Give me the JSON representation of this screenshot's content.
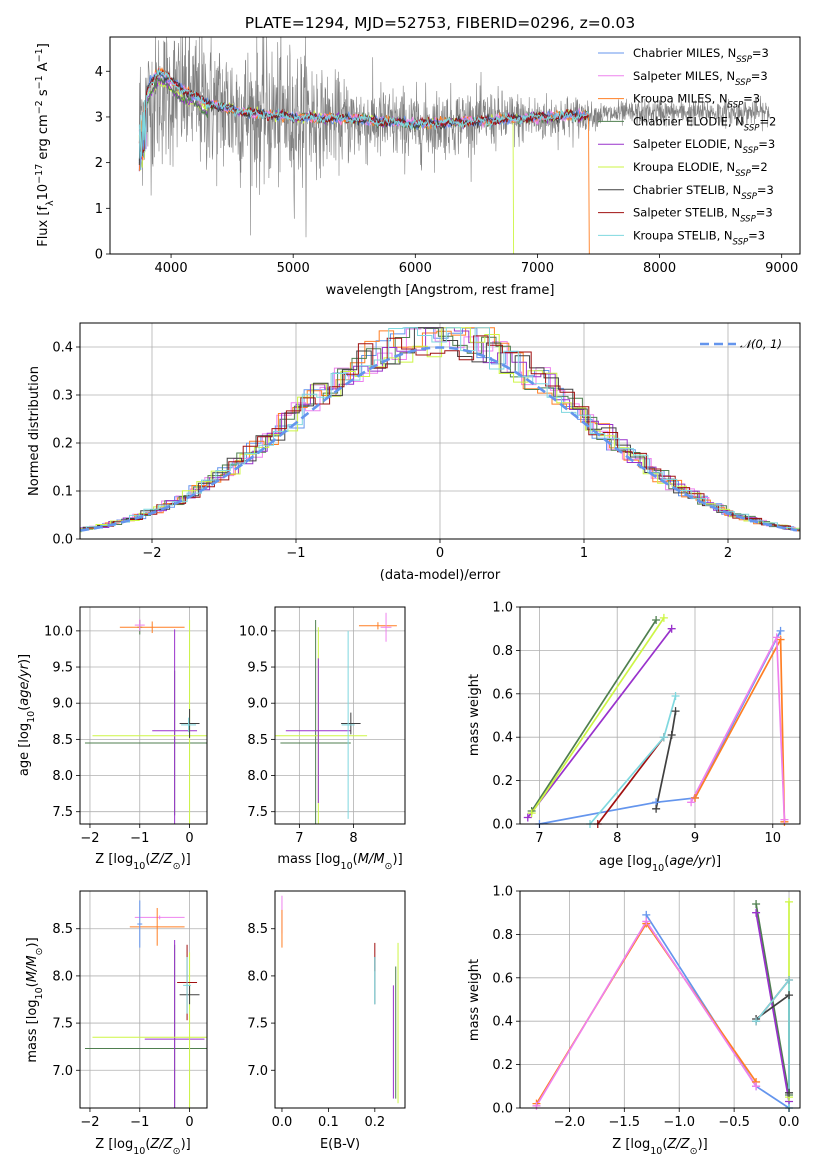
{
  "figure_title": "PLATE=1294, MJD=52753, FIBERID=0296, z=0.03",
  "series_colors": {
    "Chabrier MILES": "#6495ed",
    "Salpeter MILES": "#ee82ee",
    "Kroupa MILES": "#ff7f24",
    "Chabrier ELODIE": "#4f7f4f",
    "Salpeter ELODIE": "#9932cc",
    "Kroupa ELODIE": "#cdf545",
    "Chabrier STELIB": "#404040",
    "Salpeter STELIB": "#a01010",
    "Kroupa STELIB": "#7fd8df",
    "data": "#808080"
  },
  "chart_data": [
    {
      "id": "spectrum",
      "type": "line",
      "title": "PLATE=1294, MJD=52753, FIBERID=0296, z=0.03",
      "xlabel": "wavelength [Angstrom, rest frame]",
      "ylabel": "Flux [f_λ 10^-17 erg cm^-2 s^-1 A^-1]",
      "xlim": [
        3500,
        9150
      ],
      "ylim": [
        0,
        4.75
      ],
      "xticks": [
        4000,
        5000,
        6000,
        7000,
        8000,
        9000
      ],
      "yticks": [
        0,
        1,
        2,
        3,
        4
      ],
      "grid": false,
      "legend_position": "top-right",
      "legend": [
        {
          "label": "Chabrier MILES, N",
          "sub": "SSP",
          "eq": "=3",
          "color": "#6495ed"
        },
        {
          "label": "Salpeter MILES, N",
          "sub": "SSP",
          "eq": "=3",
          "color": "#ee82ee"
        },
        {
          "label": "Kroupa MILES, N",
          "sub": "SSP",
          "eq": "=3",
          "color": "#ff7f24"
        },
        {
          "label": "Chabrier ELODIE, N",
          "sub": "SSP",
          "eq": "=2",
          "color": "#4f7f4f"
        },
        {
          "label": "Salpeter ELODIE, N",
          "sub": "SSP",
          "eq": "=3",
          "color": "#9932cc"
        },
        {
          "label": "Kroupa ELODIE, N",
          "sub": "SSP",
          "eq": "=2",
          "color": "#cdf545"
        },
        {
          "label": "Chabrier STELIB, N",
          "sub": "SSP",
          "eq": "=3",
          "color": "#404040"
        },
        {
          "label": "Salpeter STELIB, N",
          "sub": "SSP",
          "eq": "=3",
          "color": "#a01010"
        },
        {
          "label": "Kroupa STELIB, N",
          "sub": "SSP",
          "eq": "=3",
          "color": "#7fd8df"
        }
      ],
      "data_spectrum": {
        "x_range": [
          3740,
          8900
        ],
        "continuum": [
          [
            3740,
            3.0
          ],
          [
            3900,
            3.5
          ],
          [
            4100,
            3.5
          ],
          [
            4300,
            3.3
          ],
          [
            4600,
            3.1
          ],
          [
            5000,
            3.0
          ],
          [
            5500,
            2.9
          ],
          [
            6000,
            2.8
          ],
          [
            6500,
            2.95
          ],
          [
            7000,
            2.95
          ],
          [
            7500,
            3.05
          ],
          [
            8000,
            3.1
          ],
          [
            8500,
            3.1
          ],
          [
            8900,
            3.1
          ]
        ],
        "noise_sigma_blue": 1.4,
        "noise_sigma_red": 0.25
      },
      "model_spectra": {
        "x_range": [
          3740,
          7420
        ],
        "continuum": [
          [
            3740,
            2.9
          ],
          [
            3820,
            3.7
          ],
          [
            3900,
            4.0
          ],
          [
            4100,
            3.6
          ],
          [
            4300,
            3.3
          ],
          [
            4600,
            3.1
          ],
          [
            5000,
            3.0
          ],
          [
            5500,
            2.95
          ],
          [
            6000,
            2.85
          ],
          [
            6500,
            2.9
          ],
          [
            7000,
            3.0
          ],
          [
            7420,
            3.05
          ]
        ]
      }
    },
    {
      "id": "residuals",
      "type": "histogram",
      "xlabel": "(data-model)/error",
      "ylabel": "Normed distribution",
      "xlim": [
        -2.5,
        2.5
      ],
      "ylim": [
        0,
        0.45
      ],
      "xticks": [
        -2,
        -1,
        0,
        1,
        2
      ],
      "yticks": [
        0.0,
        0.1,
        0.2,
        0.3,
        0.4
      ],
      "grid": true,
      "legend_position": "top-right",
      "legend": [
        {
          "label": "𝒩(0, 1)",
          "color": "#6495ed",
          "dashed": true
        }
      ],
      "reference_curve": "normal(0,1)"
    },
    {
      "id": "age_vs_Z",
      "type": "errorbar",
      "xlabel": "Z [log10(Z/Z⊙)]",
      "ylabel": "age  [log10(age/yr)]",
      "xlim": [
        -2.2,
        0.35
      ],
      "ylim": [
        7.33,
        10.33
      ],
      "xticks": [
        -2,
        -1,
        0
      ],
      "yticks": [
        7.5,
        8.0,
        8.5,
        9.0,
        9.5,
        10.0
      ],
      "grid": true,
      "points": [
        {
          "series": "Chabrier ELODIE",
          "x": -1.0,
          "y": 10.05,
          "xerr": 0.05,
          "yerr": 0.1
        },
        {
          "series": "Kroupa MILES",
          "x": -0.75,
          "y": 10.05,
          "xerr": 0.65,
          "yerr": 0.08
        },
        {
          "series": "Salpeter MILES",
          "x": -1.0,
          "y": 10.08,
          "xerr": 0.1,
          "yerr": 0.08
        },
        {
          "series": "Chabrier ELODIE",
          "x": -0.3,
          "y": 8.45,
          "xerr": 1.8,
          "yerr": 1.0
        },
        {
          "series": "Salpeter ELODIE",
          "x": -0.3,
          "y": 8.62,
          "xerr": 0.45,
          "yerr": 1.4
        },
        {
          "series": "Kroupa ELODIE",
          "x": 0.0,
          "y": 8.55,
          "xerr": 1.95,
          "yerr": 1.6
        },
        {
          "series": "Chabrier STELIB",
          "x": 0.0,
          "y": 8.72,
          "xerr": 0.2,
          "yerr": 0.2
        },
        {
          "series": "Kroupa STELIB",
          "x": -0.02,
          "y": 8.7,
          "xerr": 0.15,
          "yerr": 0.1
        }
      ]
    },
    {
      "id": "age_vs_mass",
      "type": "errorbar",
      "xlabel": "mass [log10(M/M⊙)]",
      "ylabel": "",
      "xlim": [
        6.55,
        8.95
      ],
      "ylim": [
        7.33,
        10.33
      ],
      "xticks": [
        7,
        8
      ],
      "yticks": [
        7.5,
        8.0,
        8.5,
        9.0,
        9.5,
        10.0
      ],
      "grid": true,
      "points": [
        {
          "series": "Kroupa MILES",
          "x": 8.45,
          "y": 10.07,
          "xerr": 0.35,
          "yerr": 0.05
        },
        {
          "series": "Salpeter MILES",
          "x": 8.6,
          "y": 10.05,
          "xerr": 0.1,
          "yerr": 0.2
        },
        {
          "series": "Chabrier ELODIE",
          "x": 7.3,
          "y": 8.45,
          "xerr": 0.65,
          "yerr": 1.7
        },
        {
          "series": "Kroupa ELODIE",
          "x": 7.35,
          "y": 8.55,
          "xerr": 0.9,
          "yerr": 1.5
        },
        {
          "series": "Salpeter ELODIE",
          "x": 7.35,
          "y": 8.62,
          "xerr": 0.6,
          "yerr": 1.0
        },
        {
          "series": "Chabrier STELIB",
          "x": 7.95,
          "y": 8.72,
          "xerr": 0.18,
          "yerr": 0.15
        },
        {
          "series": "Kroupa STELIB",
          "x": 7.9,
          "y": 8.7,
          "xerr": 0.12,
          "yerr": 1.3
        }
      ]
    },
    {
      "id": "massweight_vs_age",
      "type": "line",
      "xlabel": "age  [log10(age/yr)]",
      "ylabel": "mass weight",
      "xlim": [
        6.75,
        10.35
      ],
      "ylim": [
        0,
        1.0
      ],
      "xticks": [
        7,
        8,
        9,
        10
      ],
      "yticks": [
        0.0,
        0.2,
        0.4,
        0.6,
        0.8,
        1.0
      ],
      "grid": true,
      "series": [
        {
          "name": "Chabrier MILES",
          "x": [
            7.0,
            8.5,
            9.0,
            10.1
          ],
          "y": [
            0.0,
            0.1,
            0.12,
            0.89
          ]
        },
        {
          "name": "Kroupa MILES",
          "x": [
            9.0,
            10.1,
            10.15
          ],
          "y": [
            0.12,
            0.85,
            0.01
          ]
        },
        {
          "name": "Salpeter MILES",
          "x": [
            8.95,
            10.05,
            10.15
          ],
          "y": [
            0.1,
            0.86,
            0.02
          ]
        },
        {
          "name": "Chabrier ELODIE",
          "x": [
            6.9,
            8.5
          ],
          "y": [
            0.06,
            0.94
          ]
        },
        {
          "name": "Salpeter ELODIE",
          "x": [
            6.85,
            8.7
          ],
          "y": [
            0.03,
            0.9
          ]
        },
        {
          "name": "Kroupa ELODIE",
          "x": [
            6.9,
            8.6
          ],
          "y": [
            0.05,
            0.95
          ]
        },
        {
          "name": "Chabrier STELIB",
          "x": [
            8.5,
            8.7,
            8.75
          ],
          "y": [
            0.07,
            0.41,
            0.52
          ]
        },
        {
          "name": "Salpeter STELIB",
          "x": [
            7.75,
            8.6
          ],
          "y": [
            0.0,
            0.4
          ]
        },
        {
          "name": "Kroupa STELIB",
          "x": [
            7.65,
            8.6,
            8.75
          ],
          "y": [
            0.0,
            0.4,
            0.59
          ]
        }
      ]
    },
    {
      "id": "mass_vs_Z",
      "type": "errorbar",
      "xlabel": "Z [log10(Z/Z⊙)]",
      "ylabel": "mass [log10(M/M⊙)]",
      "xlim": [
        -2.2,
        0.35
      ],
      "ylim": [
        6.6,
        8.9
      ],
      "xticks": [
        -2,
        -1,
        0
      ],
      "yticks": [
        7.0,
        7.5,
        8.0,
        8.5
      ],
      "grid": true,
      "points": [
        {
          "series": "Salpeter MILES",
          "x": -0.6,
          "y": 8.62,
          "xerr": 0.5,
          "yerr": 0.02
        },
        {
          "series": "Kroupa MILES",
          "x": -0.65,
          "y": 8.52,
          "xerr": 0.55,
          "yerr": 0.2
        },
        {
          "series": "Chabrier MILES",
          "x": -1.0,
          "y": 8.55,
          "xerr": 0.05,
          "yerr": 0.25
        },
        {
          "series": "Chabrier ELODIE",
          "x": -0.3,
          "y": 7.23,
          "xerr": 1.8,
          "yerr": 1.1
        },
        {
          "series": "Salpeter ELODIE",
          "x": -0.3,
          "y": 7.33,
          "xerr": 0.6,
          "yerr": 1.05
        },
        {
          "series": "Kroupa ELODIE",
          "x": 0.0,
          "y": 7.35,
          "xerr": 1.95,
          "yerr": 0.9
        },
        {
          "series": "Salpeter STELIB",
          "x": -0.05,
          "y": 7.93,
          "xerr": 0.2,
          "yerr": 0.4
        },
        {
          "series": "Chabrier STELIB",
          "x": 0.0,
          "y": 7.8,
          "xerr": 0.2,
          "yerr": 0.1
        },
        {
          "series": "Kroupa STELIB",
          "x": -0.05,
          "y": 7.9,
          "xerr": 0.08,
          "yerr": 0.3
        }
      ]
    },
    {
      "id": "mass_vs_ebv",
      "type": "errorbar",
      "xlabel": "E(B-V)",
      "ylabel": "",
      "xlim": [
        -0.015,
        0.265
      ],
      "ylim": [
        6.6,
        8.9
      ],
      "xticks": [
        0.0,
        0.1,
        0.2
      ],
      "yticks": [
        7.0,
        7.5,
        8.0,
        8.5
      ],
      "grid": false,
      "points": [
        {
          "series": "Salpeter MILES",
          "x": 0.0,
          "y": 8.65,
          "xerr": 0.0,
          "yerr": 0.2
        },
        {
          "series": "Kroupa MILES",
          "x": 0.0,
          "y": 8.5,
          "xerr": 0.0,
          "yerr": 0.2
        },
        {
          "series": "Salpeter STELIB",
          "x": 0.2,
          "y": 8.2,
          "xerr": 0.0,
          "yerr": 0.15
        },
        {
          "series": "Chabrier STELIB",
          "x": 0.2,
          "y": 7.95,
          "xerr": 0.0,
          "yerr": 0.25
        },
        {
          "series": "Kroupa STELIB",
          "x": 0.2,
          "y": 7.95,
          "xerr": 0.0,
          "yerr": 0.25
        },
        {
          "series": "Salpeter ELODIE",
          "x": 0.24,
          "y": 7.3,
          "xerr": 0.0,
          "yerr": 0.6
        },
        {
          "series": "Kroupa ELODIE",
          "x": 0.25,
          "y": 7.5,
          "xerr": 0.0,
          "yerr": 0.85
        },
        {
          "series": "Chabrier ELODIE",
          "x": 0.245,
          "y": 7.4,
          "xerr": 0.0,
          "yerr": 0.7
        }
      ]
    },
    {
      "id": "massweight_vs_Z",
      "type": "line",
      "xlabel": "Z [log10(Z/Z⊙)]",
      "ylabel": "mass weight",
      "xlim": [
        -2.45,
        0.1
      ],
      "ylim": [
        0,
        1.0
      ],
      "xticks": [
        -2.0,
        -1.5,
        -1.0,
        -0.5,
        0.0
      ],
      "yticks": [
        0.0,
        0.2,
        0.4,
        0.6,
        0.8,
        1.0
      ],
      "grid": true,
      "series": [
        {
          "name": "Chabrier MILES",
          "x": [
            -1.3,
            -0.3,
            0.0
          ],
          "y": [
            0.89,
            0.1,
            0.0
          ]
        },
        {
          "name": "Kroupa MILES",
          "x": [
            -2.3,
            -1.3,
            -0.3
          ],
          "y": [
            0.02,
            0.85,
            0.12
          ]
        },
        {
          "name": "Salpeter MILES",
          "x": [
            -2.3,
            -1.3,
            -0.3
          ],
          "y": [
            0.01,
            0.86,
            0.1
          ]
        },
        {
          "name": "Chabrier ELODIE",
          "x": [
            -0.3,
            0.0
          ],
          "y": [
            0.94,
            0.06
          ]
        },
        {
          "name": "Salpeter ELODIE",
          "x": [
            -0.3,
            0.0
          ],
          "y": [
            0.9,
            0.03
          ]
        },
        {
          "name": "Kroupa ELODIE",
          "x": [
            0.0,
            0.0
          ],
          "y": [
            0.95,
            0.05
          ]
        },
        {
          "name": "Chabrier STELIB",
          "x": [
            -0.3,
            0.0,
            0.0
          ],
          "y": [
            0.41,
            0.52,
            0.07
          ]
        },
        {
          "name": "Salpeter STELIB",
          "x": [
            -0.3,
            0.0
          ],
          "y": [
            0.4,
            0.59
          ]
        },
        {
          "name": "Kroupa STELIB",
          "x": [
            -0.3,
            0.0,
            0.0
          ],
          "y": [
            0.4,
            0.59,
            0.0
          ]
        }
      ]
    }
  ]
}
